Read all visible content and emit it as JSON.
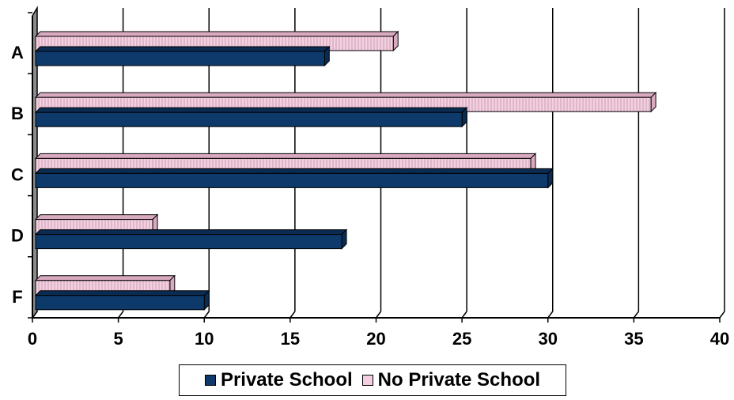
{
  "chart_data": {
    "type": "bar",
    "orientation": "horizontal",
    "style": "3d",
    "categories": [
      "A",
      "B",
      "C",
      "D",
      "F"
    ],
    "series": [
      {
        "name": "Private School",
        "values": [
          17,
          25,
          30,
          18,
          10
        ],
        "color": "#0e3a6b"
      },
      {
        "name": "No Private School",
        "values": [
          21,
          36,
          29,
          7,
          8
        ],
        "color": "#f3cfe0"
      }
    ],
    "xlim": [
      0,
      40
    ],
    "xticks": [
      "0",
      "5",
      "10",
      "15",
      "20",
      "25",
      "30",
      "35",
      "40"
    ],
    "grid": "vertical",
    "legend_position": "bottom",
    "title": "",
    "xlabel": "",
    "ylabel": ""
  }
}
